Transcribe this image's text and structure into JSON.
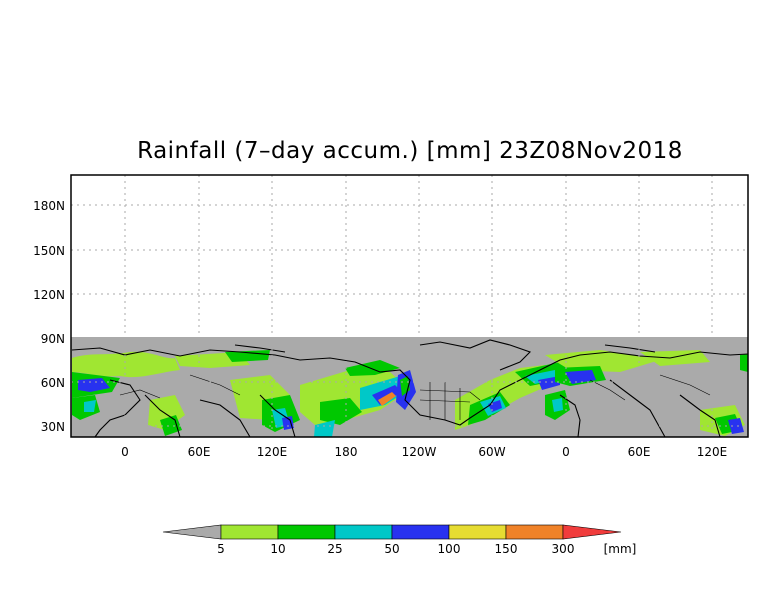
{
  "title": "Rainfall (7–day accum.) [mm] 23Z08Nov2018",
  "map": {
    "lat_labels": [
      "180N",
      "150N",
      "120N",
      "90N",
      "60N",
      "30N"
    ],
    "lon_labels": [
      "0",
      "60E",
      "120E",
      "180",
      "120W",
      "60W",
      "0",
      "60E",
      "120E"
    ],
    "data_band": "30N–90N",
    "missing_color": "#aaaaaa"
  },
  "colorbar": {
    "tick_labels": [
      "5",
      "10",
      "25",
      "50",
      "100",
      "150",
      "300"
    ],
    "unit": "[mm]",
    "colors": [
      "#aaaaaa",
      "#a0e632",
      "#00c800",
      "#00c8c8",
      "#2832f0",
      "#e6dc32",
      "#f08228",
      "#f03c3c"
    ]
  }
}
